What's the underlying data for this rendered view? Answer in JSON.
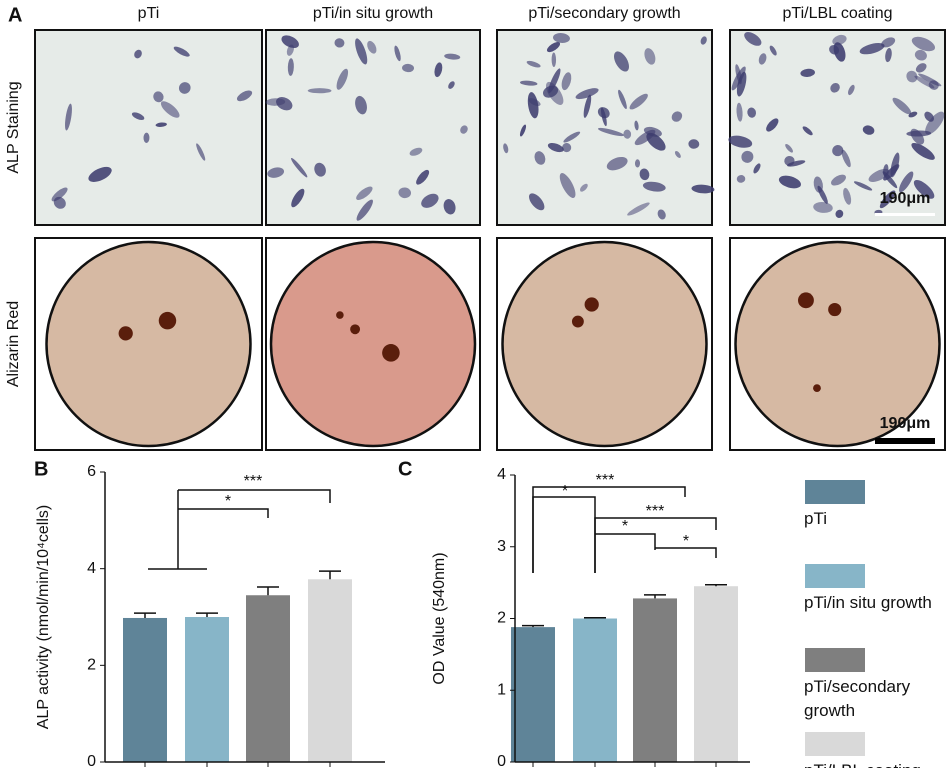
{
  "figure": {
    "panel_labels": [
      "A",
      "B",
      "C"
    ],
    "column_headers": [
      "pTi",
      "pTi/in situ growth",
      "pTi/secondary growth",
      "pTi/LBL coating"
    ],
    "row_labels": [
      "ALP Staining",
      "Alizarin Red"
    ],
    "scale_bars": [
      "190μm",
      "190μm"
    ]
  },
  "legend": [
    {
      "name": "pTi",
      "color": "#5f8498"
    },
    {
      "name": "pTi/in situ growth",
      "color": "#87b5c8"
    },
    {
      "name": "pTi/secondary growth",
      "color": "#7f7f7f"
    },
    {
      "name": "pTi/LBL coating",
      "color": "#d9d9d9"
    }
  ],
  "chart_data": [
    {
      "type": "bar",
      "ylabel": "ALP activity (nmol/min/10⁴cells)",
      "categories": [
        null,
        null,
        null,
        null
      ],
      "values": [
        2.98,
        3.0,
        3.45,
        3.78
      ],
      "errors": [
        0.1,
        0.08,
        0.17,
        0.17
      ],
      "colors": [
        "#5f8498",
        "#87b5c8",
        "#7f7f7f",
        "#d9d9d9"
      ],
      "ylim": [
        0,
        6
      ],
      "yticks": [
        0,
        2,
        4,
        6
      ],
      "annotations": [
        "*",
        "***"
      ]
    },
    {
      "type": "bar",
      "ylabel": "OD Value (540nm)",
      "categories": [
        null,
        null,
        null,
        null
      ],
      "values": [
        1.88,
        2.0,
        2.28,
        2.45
      ],
      "errors": [
        0.02,
        0.01,
        0.05,
        0.02
      ],
      "colors": [
        "#5f8498",
        "#87b5c8",
        "#7f7f7f",
        "#d9d9d9"
      ],
      "ylim": [
        0,
        4
      ],
      "yticks": [
        0,
        1,
        2,
        3,
        4
      ],
      "annotations": [
        "*",
        "***",
        "***",
        "*",
        "*"
      ]
    }
  ]
}
